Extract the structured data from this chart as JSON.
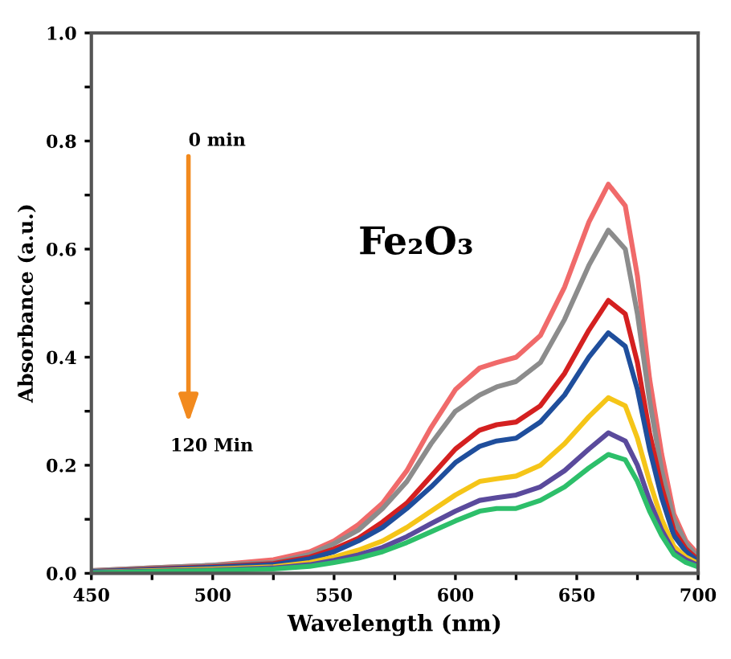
{
  "chart_data": {
    "type": "line",
    "xlabel": "Wavelength (nm)",
    "ylabel": "Absorbance (a.u.)",
    "annotations": [
      "0 min",
      "120 Min",
      "Fe₂O₃"
    ],
    "x": [
      450,
      475,
      500,
      525,
      540,
      550,
      560,
      570,
      580,
      590,
      600,
      610,
      617,
      625,
      635,
      645,
      655,
      663,
      670,
      675,
      680,
      685,
      690,
      695,
      700
    ],
    "series": [
      {
        "color": "#f06a6a",
        "values": [
          0.005,
          0.01,
          0.015,
          0.025,
          0.04,
          0.06,
          0.09,
          0.13,
          0.19,
          0.27,
          0.34,
          0.38,
          0.39,
          0.4,
          0.44,
          0.53,
          0.65,
          0.72,
          0.68,
          0.55,
          0.36,
          0.22,
          0.11,
          0.06,
          0.035
        ]
      },
      {
        "color": "#8c8c8c",
        "values": [
          0.005,
          0.01,
          0.015,
          0.02,
          0.035,
          0.055,
          0.08,
          0.12,
          0.17,
          0.24,
          0.3,
          0.33,
          0.345,
          0.355,
          0.39,
          0.47,
          0.57,
          0.635,
          0.6,
          0.48,
          0.32,
          0.19,
          0.1,
          0.055,
          0.03
        ]
      },
      {
        "color": "#d42020",
        "values": [
          0.003,
          0.008,
          0.012,
          0.018,
          0.03,
          0.045,
          0.065,
          0.095,
          0.13,
          0.18,
          0.23,
          0.265,
          0.275,
          0.28,
          0.31,
          0.37,
          0.45,
          0.505,
          0.48,
          0.39,
          0.26,
          0.16,
          0.08,
          0.045,
          0.025
        ]
      },
      {
        "color": "#1f4e9c",
        "values": [
          0.003,
          0.007,
          0.011,
          0.016,
          0.027,
          0.04,
          0.06,
          0.085,
          0.12,
          0.16,
          0.205,
          0.235,
          0.245,
          0.25,
          0.28,
          0.33,
          0.4,
          0.445,
          0.42,
          0.34,
          0.23,
          0.14,
          0.07,
          0.04,
          0.022
        ]
      },
      {
        "color": "#f5c518",
        "values": [
          0.002,
          0.005,
          0.008,
          0.012,
          0.02,
          0.03,
          0.043,
          0.06,
          0.085,
          0.115,
          0.145,
          0.17,
          0.175,
          0.18,
          0.2,
          0.24,
          0.29,
          0.325,
          0.31,
          0.25,
          0.17,
          0.1,
          0.05,
          0.03,
          0.018
        ]
      },
      {
        "color": "#5a4a9c",
        "values": [
          0.002,
          0.004,
          0.006,
          0.01,
          0.016,
          0.024,
          0.034,
          0.048,
          0.068,
          0.092,
          0.115,
          0.135,
          0.14,
          0.145,
          0.16,
          0.19,
          0.23,
          0.26,
          0.245,
          0.2,
          0.135,
          0.08,
          0.04,
          0.025,
          0.015
        ]
      },
      {
        "color": "#2dbf6a",
        "values": [
          0.001,
          0.003,
          0.005,
          0.008,
          0.013,
          0.02,
          0.028,
          0.04,
          0.057,
          0.077,
          0.097,
          0.115,
          0.12,
          0.12,
          0.135,
          0.16,
          0.195,
          0.22,
          0.21,
          0.17,
          0.115,
          0.07,
          0.035,
          0.02,
          0.012
        ]
      }
    ],
    "xlim": [
      450,
      700
    ],
    "xticks": [
      450,
      500,
      550,
      600,
      650,
      700
    ],
    "ylim": [
      0,
      1.0
    ],
    "yticks": [
      {
        "value": 0,
        "label": "0.0"
      },
      0.2,
      0.4,
      0.6,
      0.8,
      {
        "value": 1.0,
        "label": "1.0"
      }
    ],
    "grid": false,
    "legend": false,
    "marker": "none",
    "line_style": "solid"
  }
}
